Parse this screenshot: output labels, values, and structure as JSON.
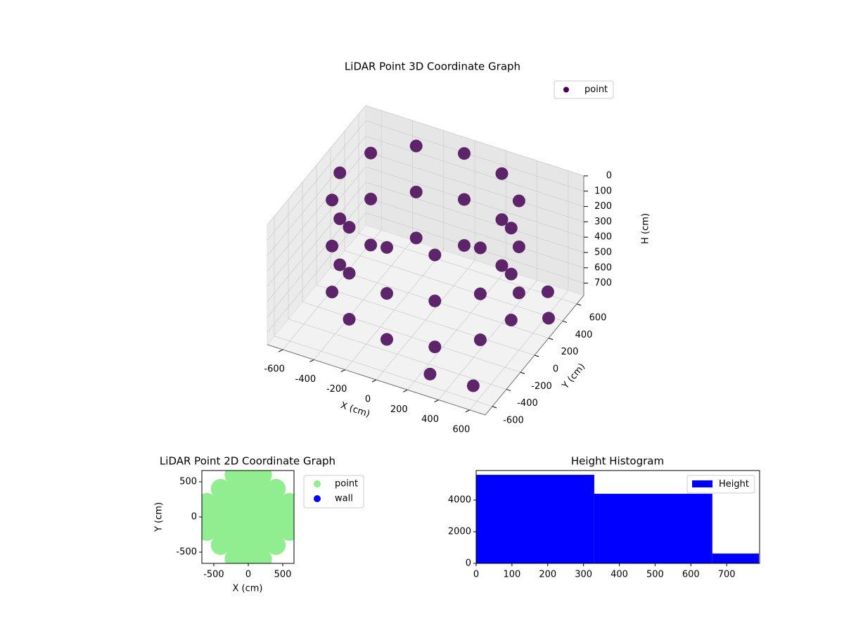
{
  "chart_data": [
    {
      "type": "scatter3d",
      "title": "LiDAR Point 3D Coordinate Graph",
      "xlabel": "X (cm)",
      "ylabel": "Y (cm)",
      "zlabel": "H (cm)",
      "xlim": [
        -700,
        700
      ],
      "ylim": [
        -700,
        700
      ],
      "zlim": [
        780,
        0
      ],
      "xticks": [
        -600,
        -400,
        -200,
        0,
        200,
        400,
        600
      ],
      "yticks": [
        -600,
        -400,
        -200,
        0,
        200,
        400,
        600
      ],
      "zticks": [
        0,
        100,
        200,
        300,
        400,
        500,
        600,
        700
      ],
      "grid": true,
      "legend": "upper right",
      "series": [
        {
          "name": "point",
          "color": "#440154",
          "x": [
            550,
            476,
            275,
            0,
            -275,
            -476,
            -550,
            -476,
            -275,
            0,
            275,
            476,
            550,
            476,
            275,
            0,
            -275,
            -476,
            -550,
            -476,
            -275,
            0,
            275,
            476,
            550,
            476,
            275,
            0,
            -275,
            -476,
            -550,
            -476,
            -275,
            0,
            275,
            476,
            650,
            700,
            300,
            600
          ],
          "y": [
            0,
            275,
            476,
            550,
            476,
            275,
            0,
            -275,
            -476,
            -550,
            -476,
            -275,
            0,
            275,
            476,
            550,
            476,
            275,
            0,
            -275,
            -476,
            -550,
            -476,
            -275,
            0,
            275,
            476,
            550,
            476,
            275,
            0,
            -275,
            -476,
            -550,
            -476,
            -275,
            300,
            200,
            -600,
            -650
          ],
          "z": [
            0,
            0,
            0,
            0,
            0,
            0,
            0,
            0,
            0,
            0,
            0,
            0,
            300,
            300,
            300,
            300,
            300,
            300,
            300,
            300,
            300,
            300,
            300,
            300,
            600,
            600,
            600,
            600,
            600,
            600,
            600,
            600,
            600,
            600,
            600,
            600,
            550,
            650,
            700,
            650
          ]
        }
      ]
    },
    {
      "type": "scatter",
      "title": "LiDAR Point 2D Coordinate Graph",
      "xlabel": "X (cm)",
      "ylabel": "Y (cm)",
      "xlim": [
        -673,
        663
      ],
      "ylim": [
        -660,
        660
      ],
      "xticks": [
        -500,
        0,
        500
      ],
      "yticks": [
        -500,
        0,
        500
      ],
      "legend": "outside right",
      "marker_radius": 14,
      "series": [
        {
          "name": "point",
          "color": "#90ee90",
          "x": [
            -600,
            -600,
            -600,
            -400,
            -400,
            -400,
            -400,
            -400,
            -200,
            -200,
            -200,
            -200,
            -200,
            -200,
            -200,
            0,
            0,
            0,
            0,
            0,
            0,
            0,
            200,
            200,
            200,
            200,
            200,
            200,
            200,
            400,
            400,
            400,
            400,
            400,
            600,
            600,
            600
          ],
          "y": [
            -200,
            0,
            200,
            -400,
            -200,
            0,
            200,
            400,
            -600,
            -400,
            -200,
            0,
            200,
            400,
            600,
            -600,
            -400,
            -200,
            0,
            200,
            400,
            600,
            -600,
            -400,
            -200,
            0,
            200,
            400,
            600,
            -400,
            -200,
            0,
            200,
            400,
            -200,
            0,
            200
          ]
        },
        {
          "name": "wall",
          "color": "#0000ff",
          "x": [],
          "y": []
        }
      ]
    },
    {
      "type": "histogram",
      "title": "Height Histogram",
      "bins": [
        0,
        330,
        660,
        790
      ],
      "counts": [
        5600,
        4400,
        620
      ],
      "xlim": [
        0,
        792
      ],
      "ylim": [
        0,
        5870
      ],
      "xticks": [
        0,
        100,
        200,
        300,
        400,
        500,
        600,
        700
      ],
      "yticks": [
        0,
        2000,
        4000
      ],
      "legend": "upper right",
      "series": [
        {
          "name": "Height",
          "color": "#0000ff"
        }
      ]
    }
  ]
}
